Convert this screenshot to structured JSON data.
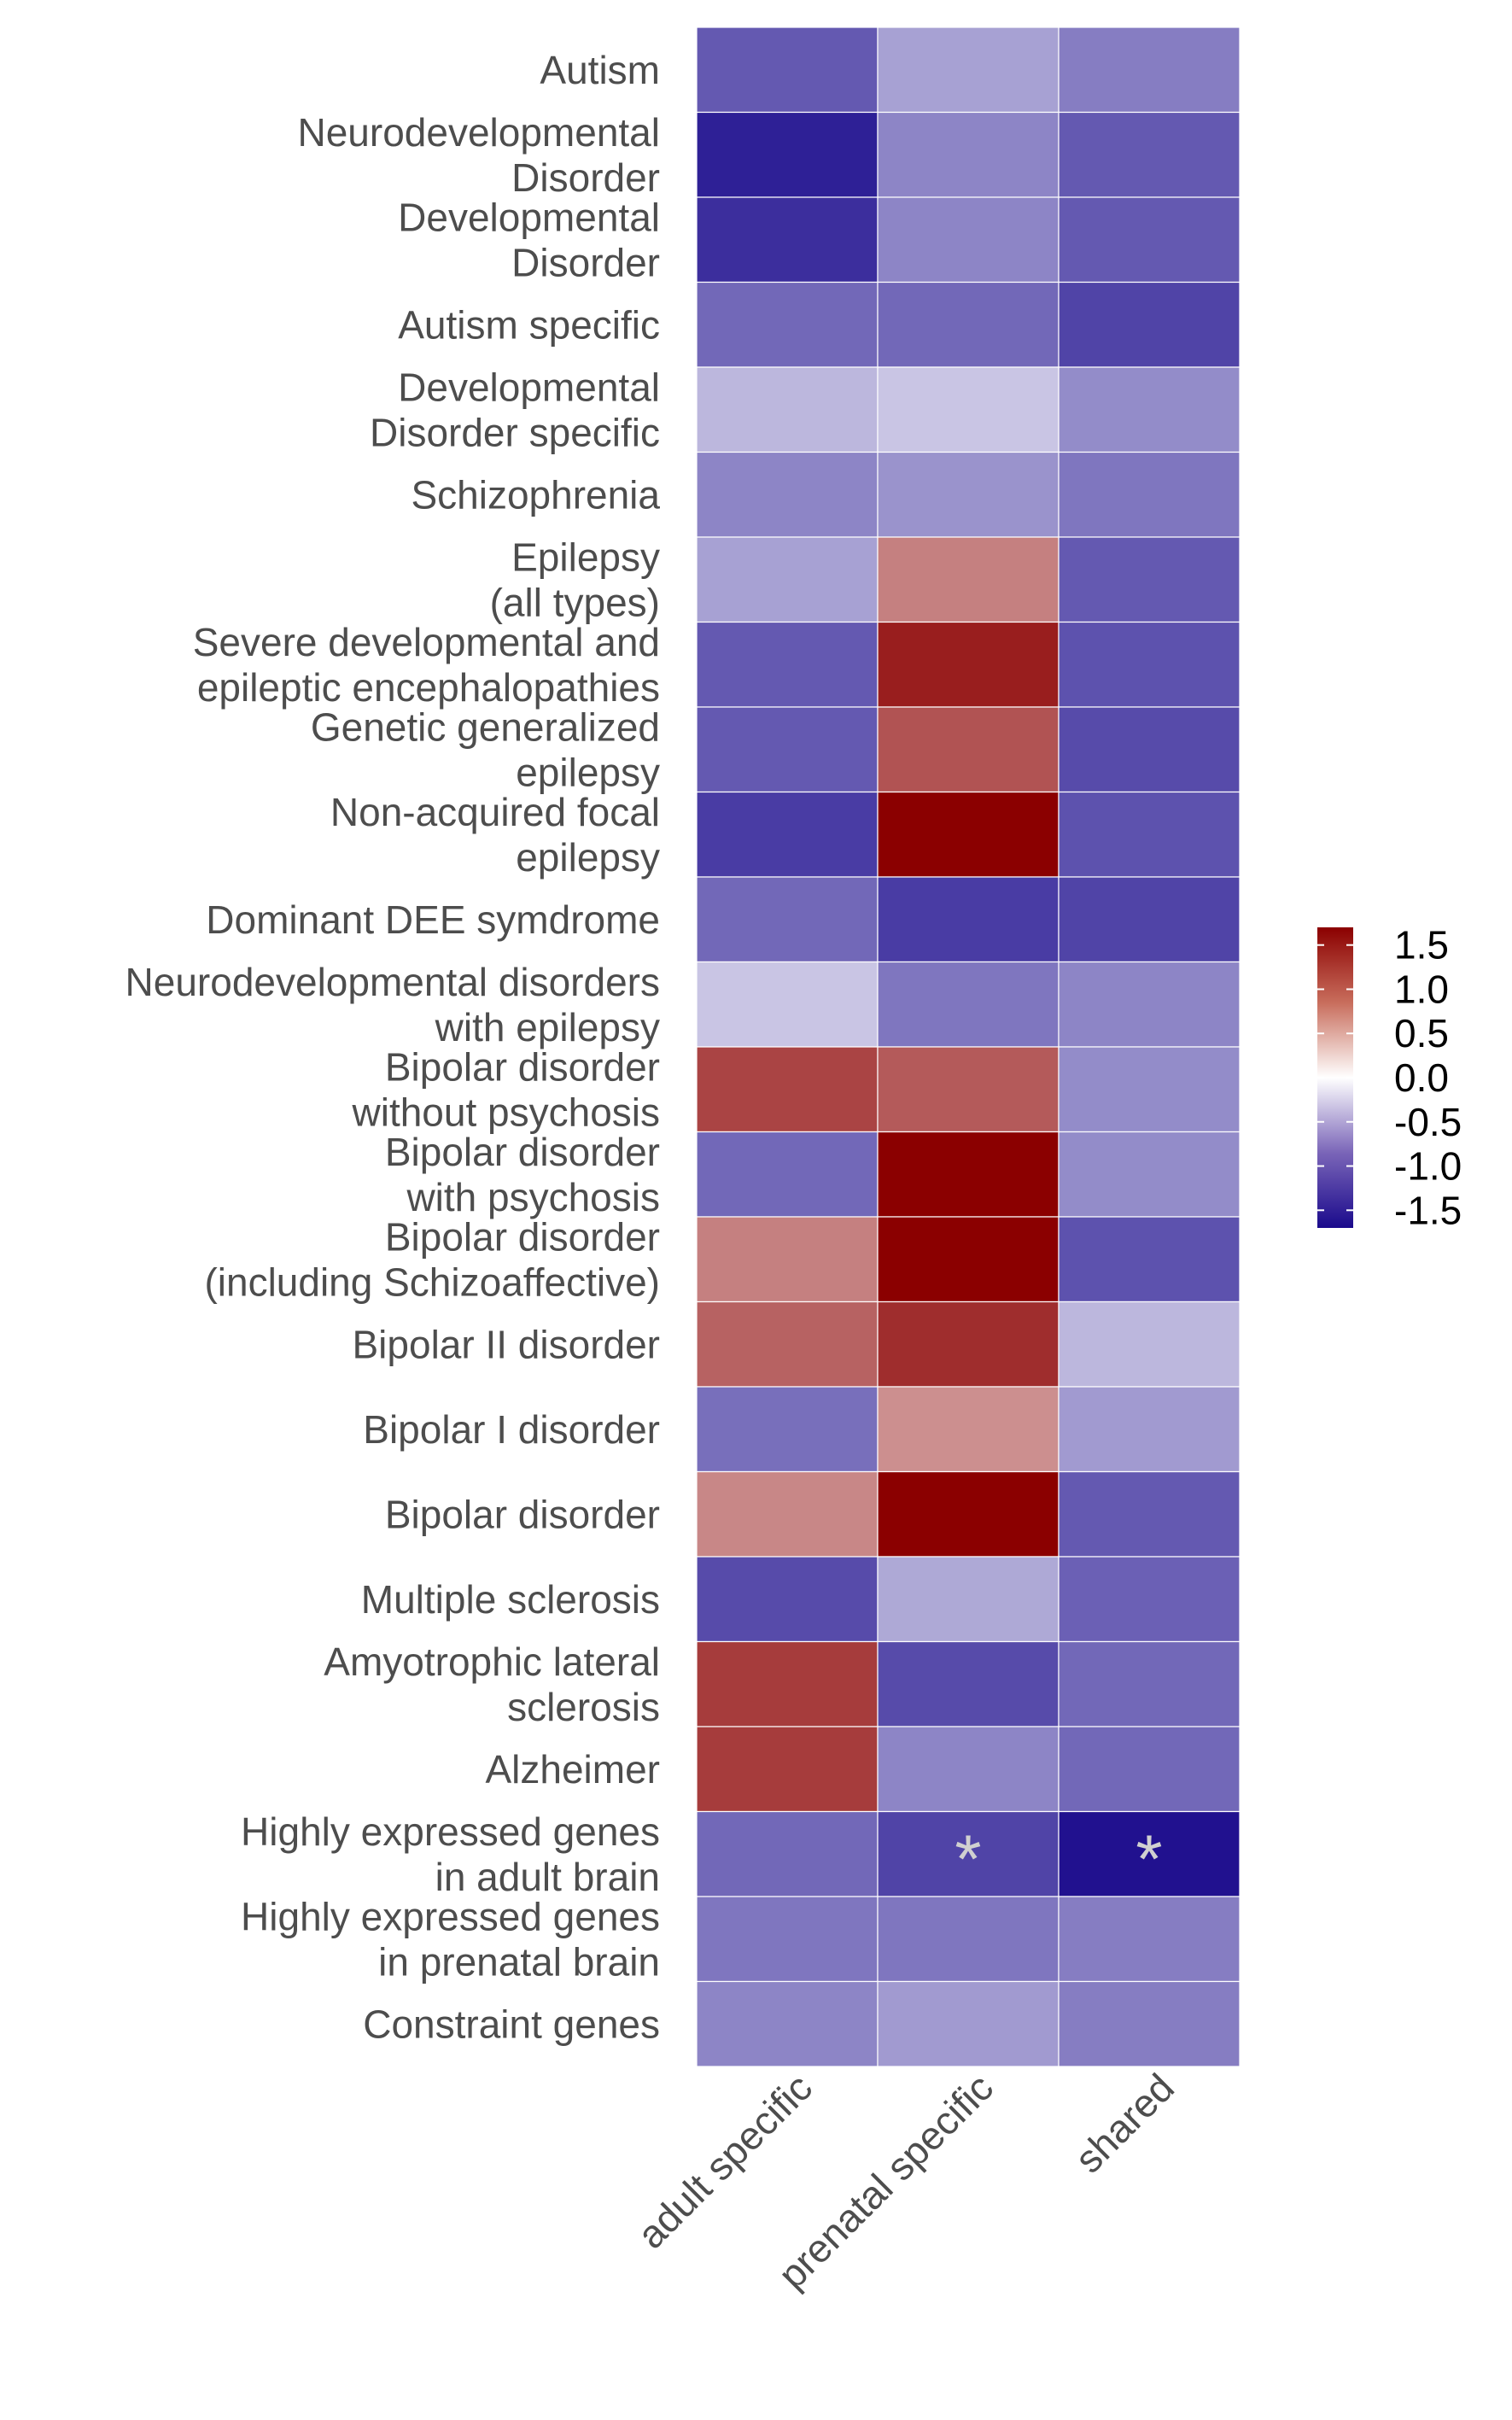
{
  "chart_data": {
    "type": "heatmap",
    "columns": [
      "adult specific",
      "prenatal specific",
      "shared"
    ],
    "rows": [
      {
        "label": [
          "Autism"
        ],
        "values": [
          -1.15,
          -0.65,
          -0.9
        ]
      },
      {
        "label": [
          "Neurodevelopmental",
          "Disorder"
        ],
        "values": [
          -1.55,
          -0.85,
          -1.15
        ]
      },
      {
        "label": [
          "Developmental",
          "Disorder"
        ],
        "values": [
          -1.45,
          -0.85,
          -1.15
        ]
      },
      {
        "label": [
          "Autism specific"
        ],
        "values": [
          -1.05,
          -1.05,
          -1.3
        ]
      },
      {
        "label": [
          "Developmental",
          "Disorder specific"
        ],
        "values": [
          -0.5,
          -0.4,
          -0.8
        ]
      },
      {
        "label": [
          "Schizophrenia"
        ],
        "values": [
          -0.85,
          -0.75,
          -0.95
        ]
      },
      {
        "label": [
          "Epilepsy",
          "(all types)"
        ],
        "values": [
          -0.65,
          0.85,
          -1.15
        ]
      },
      {
        "label": [
          "Severe developmental and",
          "epileptic encephalopathies"
        ],
        "values": [
          -1.15,
          1.5,
          -1.2
        ]
      },
      {
        "label": [
          "Genetic generalized",
          "epilepsy"
        ],
        "values": [
          -1.15,
          1.15,
          -1.25
        ]
      },
      {
        "label": [
          "Non-acquired focal",
          "epilepsy"
        ],
        "values": [
          -1.35,
          1.7,
          -1.2
        ]
      },
      {
        "label": [
          "Dominant DEE symdrome"
        ],
        "values": [
          -1.05,
          -1.35,
          -1.3
        ]
      },
      {
        "label": [
          "Neurodevelopmental disorders",
          "with epilepsy"
        ],
        "values": [
          -0.4,
          -0.95,
          -0.85
        ]
      },
      {
        "label": [
          "Bipolar disorder",
          "without psychosis"
        ],
        "values": [
          1.25,
          1.1,
          -0.8
        ]
      },
      {
        "label": [
          "Bipolar disorder",
          "with psychosis"
        ],
        "values": [
          -1.05,
          1.7,
          -0.8
        ]
      },
      {
        "label": [
          "Bipolar disorder",
          "(including Schizoaffective)"
        ],
        "values": [
          0.85,
          1.7,
          -1.2
        ]
      },
      {
        "label": [
          "Bipolar II disorder"
        ],
        "values": [
          1.05,
          1.4,
          -0.5
        ]
      },
      {
        "label": [
          "Bipolar I disorder"
        ],
        "values": [
          -1.0,
          0.75,
          -0.7
        ]
      },
      {
        "label": [
          "Bipolar disorder"
        ],
        "values": [
          0.8,
          1.7,
          -1.15
        ]
      },
      {
        "label": [
          "Multiple sclerosis"
        ],
        "values": [
          -1.25,
          -0.6,
          -1.1
        ]
      },
      {
        "label": [
          "Amyotrophic lateral",
          "sclerosis"
        ],
        "values": [
          1.3,
          -1.25,
          -1.05
        ]
      },
      {
        "label": [
          "Alzheimer"
        ],
        "values": [
          1.3,
          -0.85,
          -1.05
        ]
      },
      {
        "label": [
          "Highly expressed genes",
          "in adult brain"
        ],
        "values": [
          -1.05,
          -1.3,
          -1.65
        ],
        "stars": [
          "",
          "*",
          "*"
        ]
      },
      {
        "label": [
          "Highly expressed genes",
          "in prenatal brain"
        ],
        "values": [
          -0.95,
          -0.95,
          -0.9
        ]
      },
      {
        "label": [
          "Constraint genes"
        ],
        "values": [
          -0.85,
          -0.7,
          -0.9
        ]
      }
    ],
    "colorscale": {
      "low": "#1a0a8c",
      "mid": "#ffffff",
      "high": "#8b0000",
      "limits": [
        -1.7,
        1.7
      ]
    },
    "legend": {
      "ticks": [
        {
          "value": 1.5,
          "label": "1.5"
        },
        {
          "value": 1.0,
          "label": "1.0"
        },
        {
          "value": 0.5,
          "label": "0.5"
        },
        {
          "value": 0.0,
          "label": "0.0"
        },
        {
          "value": -0.5,
          "label": "-0.5"
        },
        {
          "value": -1.0,
          "label": "-1.0"
        },
        {
          "value": -1.5,
          "label": "-1.5"
        }
      ],
      "placement": "right"
    }
  }
}
